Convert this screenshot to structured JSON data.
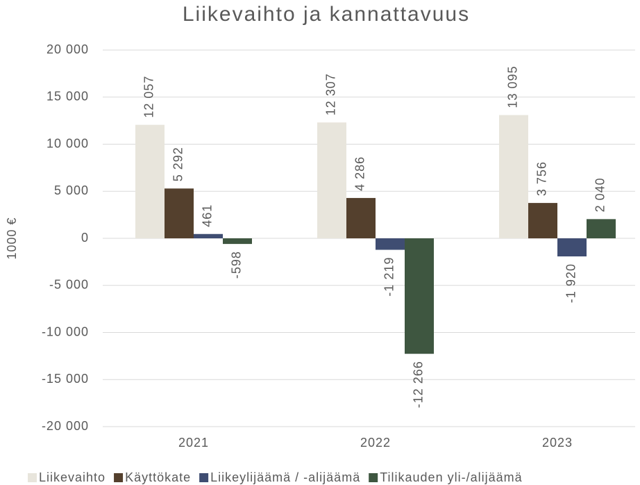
{
  "chart_data": {
    "type": "bar",
    "title": "Liikevaihto ja kannattavuus",
    "y_label": "1000 €",
    "categories": [
      "2021",
      "2022",
      "2023"
    ],
    "series": [
      {
        "name": "Liikevaihto",
        "color": "#e8e5dc",
        "values": [
          12057,
          12307,
          13095
        ],
        "value_labels": [
          "12 057",
          "12 307",
          "13 095"
        ]
      },
      {
        "name": "Käyttökate",
        "color": "#54402d",
        "values": [
          5292,
          4286,
          3756
        ],
        "value_labels": [
          "5 292",
          "4 286",
          "3 756"
        ]
      },
      {
        "name": "Liikeylijäämä / -alijäämä",
        "color": "#3f4d72",
        "values": [
          461,
          -1219,
          -1920
        ],
        "value_labels": [
          "461",
          "-1 219",
          "-1 920"
        ]
      },
      {
        "name": "Tilikauden yli-/alijäämä",
        "color": "#3e5640",
        "values": [
          -598,
          -12266,
          2040
        ],
        "value_labels": [
          "-598",
          "-12 266",
          "2 040"
        ]
      }
    ],
    "ylim": [
      -20000,
      20000
    ],
    "yticks": [
      {
        "value": -20000,
        "label": "-20 000"
      },
      {
        "value": -15000,
        "label": "-15 000"
      },
      {
        "value": -10000,
        "label": "-10 000"
      },
      {
        "value": -5000,
        "label": "-5 000"
      },
      0,
      {
        "value": 5000,
        "label": "5 000"
      },
      {
        "value": 10000,
        "label": "10 000"
      },
      {
        "value": 15000,
        "label": "15 000"
      },
      {
        "value": 20000,
        "label": "20 000"
      }
    ],
    "grid": true,
    "legend": "bottom"
  }
}
